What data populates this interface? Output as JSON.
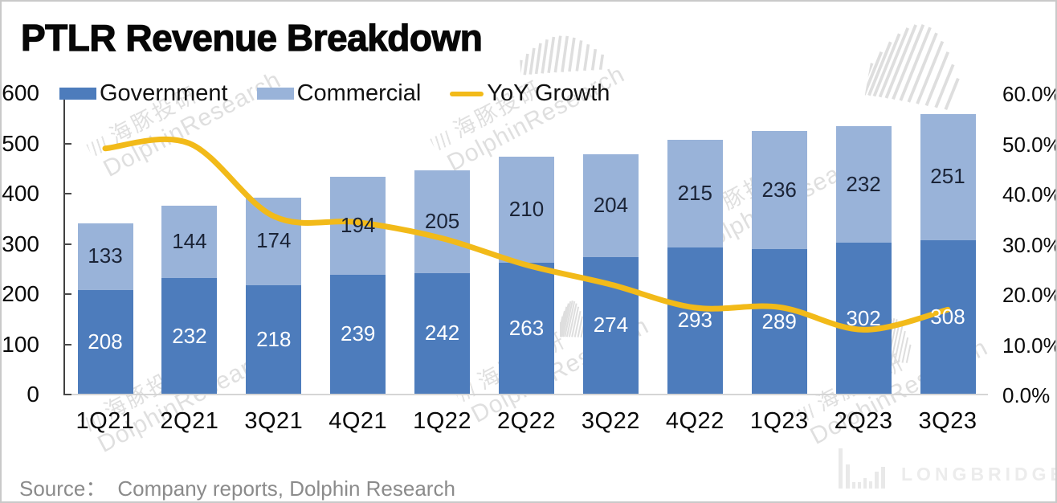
{
  "title": "PTLR Revenue Breakdown",
  "legend": {
    "items": [
      {
        "label": "Government",
        "color": "#4d7cbc",
        "swatch": "box"
      },
      {
        "label": "Commercial",
        "color": "#99b3d9",
        "swatch": "box"
      },
      {
        "label": "YoY Growth",
        "color": "#f2ba19",
        "swatch": "line"
      }
    ]
  },
  "axes": {
    "left": {
      "ticks": [
        "600",
        "500",
        "400",
        "300",
        "200",
        "100",
        "0"
      ]
    },
    "right": {
      "ticks": [
        "60.0%",
        "50.0%",
        "40.0%",
        "30.0%",
        "20.0%",
        "10.0%",
        "0.0%"
      ]
    }
  },
  "chart_data": {
    "type": "bar",
    "subtype": "stacked-columns-with-line",
    "title": "PTLR Revenue Breakdown",
    "categories": [
      "1Q21",
      "2Q21",
      "3Q21",
      "4Q21",
      "1Q22",
      "2Q22",
      "3Q22",
      "4Q22",
      "1Q23",
      "2Q23",
      "3Q23"
    ],
    "series": [
      {
        "name": "Government",
        "type": "bar",
        "stack": true,
        "color": "#4d7cbc",
        "label_color": "#ffffff",
        "values": [
          208,
          232,
          218,
          239,
          242,
          263,
          274,
          293,
          289,
          302,
          308
        ]
      },
      {
        "name": "Commercial",
        "type": "bar",
        "stack": true,
        "color": "#99b3d9",
        "label_color": "#1b2437",
        "values": [
          133,
          144,
          174,
          194,
          205,
          210,
          204,
          215,
          236,
          232,
          251
        ]
      },
      {
        "name": "YoY Growth",
        "type": "line",
        "axis": "right",
        "color": "#f2ba19",
        "unit": "%",
        "values": [
          49.0,
          50.0,
          35.5,
          34.3,
          31.1,
          25.8,
          21.9,
          17.3,
          17.4,
          12.9,
          16.9
        ]
      }
    ],
    "left_axis": {
      "min": 0,
      "max": 600,
      "step": 100
    },
    "right_axis": {
      "min": 0,
      "max": 60,
      "step": 10,
      "format": "percent"
    },
    "legend_position": "top",
    "grid": false
  },
  "source": {
    "prefix": "Source：",
    "text": "Company reports, Dolphin Research"
  },
  "watermark": {
    "cn": "海豚投研",
    "en": "DolphinResearch",
    "brand": "LONGBRIDGE"
  }
}
